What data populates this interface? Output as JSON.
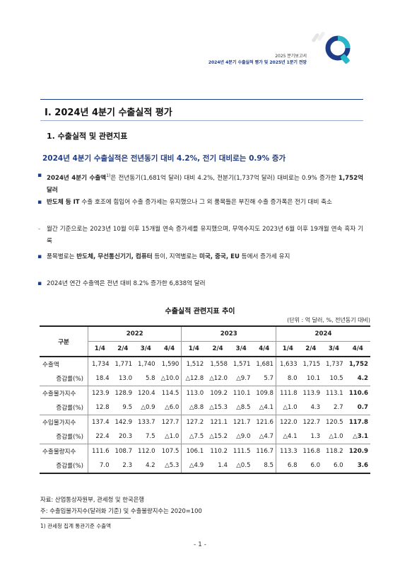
{
  "header": {
    "line1": "2025 분기보고서",
    "line2": "2024년 4분기 수출실적 평가 및 2025년 1분기 전망",
    "logo_letter": "Q",
    "accent": "#1f3c88"
  },
  "section": {
    "title": "Ⅰ. 2024년 4분기 수출실적 평가",
    "subtitle": "1. 수출실적 및 관련지표",
    "headline": "2024년 4분기 수출실적은 전년동기 대비 4.2%, 전기 대비로는 0.9% 증가"
  },
  "bullets": {
    "b1_bold": "2024년 4분기 수출액",
    "b1_sup": "1)",
    "b1_text": "은 전년동기(1,681억 달러) 대비 4.2%, 전분기(1,737억 달러) 대비로는 0.9% 증가한 ",
    "b1_bold2": "1,752억 달러",
    "b2_bold": "반도체 등 IT",
    "b2_text": " 수출 호조에 힘입어 수출 증가세는 유지했으나 그 외 품목들은 부진해 수출 증가폭은 전기 대비 축소",
    "b3_text": "월간 기준으로는 2023년 10월 이후 15개월 연속 증가세를 유지했으며, 무역수지도 2023년 6월 이후 19개월 연속 흑자 기록",
    "b4_a": "품목별로는 ",
    "b4_b": "반도체, 무선통신기기, 컴퓨터",
    "b4_c": " 등이, 지역별로는 ",
    "b4_d": "미국, 중국, EU",
    "b4_e": " 등에서 증가세 유지",
    "b5_text": "2024년 연간 수출액은 전년 대비 8.2% 증가한 6,838억 달러"
  },
  "table": {
    "title": "수출실적 관련지표 추이",
    "unit": "(단위 : 억 달러, %, 전년동기 대비)",
    "corner": "구분",
    "years": [
      "2022",
      "2023",
      "2024"
    ],
    "quarters": [
      "1/4",
      "2/4",
      "3/4",
      "4/4",
      "1/4",
      "2/4",
      "3/4",
      "4/4",
      "1/4",
      "2/4",
      "3/4",
      "4/4"
    ],
    "rows": [
      {
        "label": "수출액",
        "values": [
          "1,734",
          "1,771",
          "1,740",
          "1,590",
          "1,512",
          "1,558",
          "1,571",
          "1,681",
          "1,633",
          "1,715",
          "1,737",
          "1,752"
        ]
      },
      {
        "label": "증감률(%)",
        "values": [
          "18.4",
          "13.0",
          "5.8",
          "△10.0",
          "△12.8",
          "△12.0",
          "△9.7",
          "5.7",
          "8.0",
          "10.1",
          "10.5",
          "4.2"
        ]
      },
      {
        "label": "수출물가지수",
        "values": [
          "123.9",
          "128.9",
          "120.4",
          "114.5",
          "113.0",
          "109.2",
          "110.1",
          "109.8",
          "111.8",
          "113.9",
          "113.1",
          "110.6"
        ]
      },
      {
        "label": "증감률(%)",
        "values": [
          "12.8",
          "9.5",
          "△0.9",
          "△6.0",
          "△8.8",
          "△15.3",
          "△8.5",
          "△4.1",
          "△1.0",
          "4.3",
          "2.7",
          "0.7"
        ]
      },
      {
        "label": "수입물가지수",
        "values": [
          "137.4",
          "142.9",
          "133.7",
          "127.7",
          "127.2",
          "121.1",
          "121.7",
          "121.6",
          "122.0",
          "122.7",
          "120.5",
          "117.8"
        ]
      },
      {
        "label": "증감률(%)",
        "values": [
          "22.4",
          "20.3",
          "7.5",
          "△1.0",
          "△7.5",
          "△15.2",
          "△9.0",
          "△4.7",
          "△4.1",
          "1.3",
          "△1.0",
          "△3.1"
        ]
      },
      {
        "label": "수출물량지수",
        "values": [
          "111.6",
          "108.7",
          "112.0",
          "107.5",
          "106.1",
          "110.2",
          "111.5",
          "116.7",
          "113.3",
          "116.8",
          "118.2",
          "120.9"
        ]
      },
      {
        "label": "증감률(%)",
        "values": [
          "7.0",
          "2.3",
          "4.2",
          "△5.3",
          "△4.9",
          "1.4",
          "△0.5",
          "8.5",
          "6.8",
          "6.0",
          "6.0",
          "3.6"
        ]
      }
    ]
  },
  "notes": {
    "source": "자료: 산업통상자원부, 관세청 및 한국은행",
    "note": "주: 수출입물가지수(달러화 기준) 및 수출물량지수는 2020=100",
    "footnote": "1) 관세청 집계 통관기준 수출액",
    "page": "- 1 -"
  }
}
